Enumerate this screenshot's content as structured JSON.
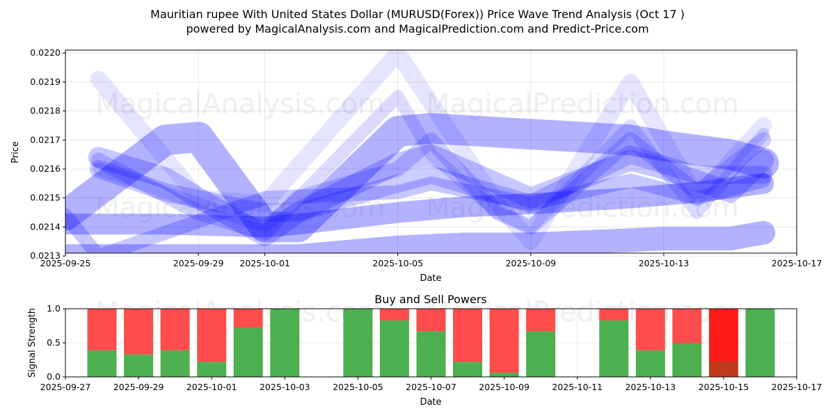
{
  "title_line1": "Mauritian rupee With United States Dollar (MURUSD(Forex)) Price Wave Trend Analysis (Oct 17 )",
  "title_line2": "powered by MagicalAnalysis.com and MagicalPrediction.com and Predict-Price.com",
  "watermarks": {
    "top": [
      "MagicalAnalysis.com",
      "MagicalPrediction.com"
    ],
    "bottom": [
      "MagicalAnalysis.com",
      "MagicalPrediction.com"
    ]
  },
  "colors": {
    "wave": "#0000ff",
    "buy": "#4caf50",
    "sell": "#ff4c4c",
    "sell_strong": "#ff1a1a",
    "buy_strong": "#c03c1c"
  },
  "chart_data": [
    {
      "type": "line",
      "name": "price-wave-chart",
      "xlabel": "Date",
      "ylabel": "Price",
      "xlim": [
        "2025-09-25",
        "2025-10-17"
      ],
      "ylim": [
        0.02131,
        0.02201
      ],
      "x_ticks": [
        "2025-09-25",
        "2025-09-29",
        "2025-10-01",
        "2025-10-05",
        "2025-10-09",
        "2025-10-13",
        "2025-10-17"
      ],
      "y_ticks": [
        "0.0213",
        "0.0214",
        "0.0215",
        "0.0216",
        "0.0217",
        "0.0218",
        "0.0219",
        "0.0220"
      ],
      "grid": true,
      "series": [
        {
          "name": "wave-1",
          "x": [
            "2025-09-25",
            "2025-09-26",
            "2025-09-28",
            "2025-09-29",
            "2025-10-01",
            "2025-10-02",
            "2025-10-03",
            "2025-10-05",
            "2025-10-07",
            "2025-10-09",
            "2025-10-11",
            "2025-10-13",
            "2025-10-15",
            "2025-10-16"
          ],
          "y": [
            0.0213,
            0.0213,
            0.0213,
            0.0213,
            0.0213,
            0.0213,
            0.02131,
            0.02133,
            0.02134,
            0.02134,
            0.02135,
            0.02136,
            0.02136,
            0.02138
          ]
        },
        {
          "name": "wave-2",
          "x": [
            "2025-09-25",
            "2025-09-28",
            "2025-10-01",
            "2025-10-02",
            "2025-10-05",
            "2025-10-07",
            "2025-10-09",
            "2025-10-12",
            "2025-10-14",
            "2025-10-16"
          ],
          "y": [
            0.02141,
            0.02141,
            0.0214,
            0.02141,
            0.02145,
            0.02147,
            0.02148,
            0.0215,
            0.02152,
            0.02155
          ]
        },
        {
          "name": "wave-3",
          "x": [
            "2025-09-25",
            "2025-09-28",
            "2025-09-29",
            "2025-10-01",
            "2025-10-02",
            "2025-10-05",
            "2025-10-06",
            "2025-10-09",
            "2025-10-12",
            "2025-10-13",
            "2025-10-15",
            "2025-10-16"
          ],
          "y": [
            0.02144,
            0.0217,
            0.02171,
            0.0214,
            0.0214,
            0.02173,
            0.02174,
            0.02172,
            0.0217,
            0.02168,
            0.02165,
            0.02162
          ]
        },
        {
          "name": "wave-4",
          "x": [
            "2025-09-26",
            "2025-09-28",
            "2025-09-29",
            "2025-10-01",
            "2025-10-02",
            "2025-10-05",
            "2025-10-06",
            "2025-10-09",
            "2025-10-12",
            "2025-10-13",
            "2025-10-15",
            "2025-10-16"
          ],
          "y": [
            0.02164,
            0.02157,
            0.0215,
            0.02137,
            0.02145,
            0.02162,
            0.02165,
            0.0215,
            0.02163,
            0.0216,
            0.02152,
            0.02163
          ]
        },
        {
          "name": "wave-5",
          "x": [
            "2025-09-26",
            "2025-09-28",
            "2025-10-01",
            "2025-10-02",
            "2025-10-05",
            "2025-10-06",
            "2025-10-09",
            "2025-10-12",
            "2025-10-14",
            "2025-10-16"
          ],
          "y": [
            0.0216,
            0.02152,
            0.02145,
            0.02145,
            0.02155,
            0.02158,
            0.02148,
            0.02165,
            0.02158,
            0.02158
          ]
        },
        {
          "name": "wave-6",
          "x": [
            "2025-09-26",
            "2025-09-29",
            "2025-10-01",
            "2025-10-02",
            "2025-10-05",
            "2025-10-06",
            "2025-10-08",
            "2025-10-09",
            "2025-10-12",
            "2025-10-14",
            "2025-10-16"
          ],
          "y": [
            0.02163,
            0.02145,
            0.02138,
            0.0215,
            0.0216,
            0.0217,
            0.02145,
            0.0214,
            0.0217,
            0.02152,
            0.0217
          ]
        },
        {
          "name": "wave-7",
          "x": [
            "2025-09-25",
            "2025-09-26",
            "2025-10-01",
            "2025-10-05",
            "2025-10-06",
            "2025-10-09",
            "2025-10-12",
            "2025-10-14",
            "2025-10-16"
          ],
          "y": [
            0.02144,
            0.0213,
            0.0215,
            0.02152,
            0.02155,
            0.02148,
            0.02156,
            0.0215,
            0.02156
          ]
        },
        {
          "name": "wave-8",
          "x": [
            "2025-09-26",
            "2025-09-29",
            "2025-10-01",
            "2025-10-05",
            "2025-10-08",
            "2025-10-09",
            "2025-10-12",
            "2025-10-14",
            "2025-10-16"
          ],
          "y": [
            0.02191,
            0.0215,
            0.02148,
            0.022,
            0.02148,
            0.02135,
            0.0219,
            0.0215,
            0.02175
          ]
        },
        {
          "name": "wave-9",
          "x": [
            "2025-09-26",
            "2025-09-29",
            "2025-10-01",
            "2025-10-02",
            "2025-10-05",
            "2025-10-06",
            "2025-10-08",
            "2025-10-09",
            "2025-10-12",
            "2025-10-14",
            "2025-10-16"
          ],
          "y": [
            0.0216,
            0.02148,
            0.0214,
            0.0215,
            0.02185,
            0.02165,
            0.02145,
            0.0214,
            0.02175,
            0.02145,
            0.02172
          ]
        }
      ]
    },
    {
      "type": "bar",
      "name": "buy-sell-powers-chart",
      "title": "Buy and Sell Powers",
      "xlabel": "Date",
      "ylabel": "Signal Strength",
      "xlim": [
        "2025-09-27",
        "2025-10-17"
      ],
      "ylim": [
        0,
        1
      ],
      "x_ticks": [
        "2025-09-27",
        "2025-09-29",
        "2025-10-01",
        "2025-10-03",
        "2025-10-05",
        "2025-10-07",
        "2025-10-09",
        "2025-10-11",
        "2025-10-13",
        "2025-10-15",
        "2025-10-17"
      ],
      "y_ticks": [
        "0.0",
        "0.5",
        "1.0"
      ],
      "grid": true,
      "categories": [
        "2025-09-28",
        "2025-09-29",
        "2025-09-30",
        "2025-10-01",
        "2025-10-02",
        "2025-10-03",
        "2025-10-05",
        "2025-10-06",
        "2025-10-07",
        "2025-10-08",
        "2025-10-09",
        "2025-10-10",
        "2025-10-12",
        "2025-10-13",
        "2025-10-14",
        "2025-10-15",
        "2025-10-16"
      ],
      "series": [
        {
          "name": "buy",
          "values": [
            0.39,
            0.33,
            0.39,
            0.22,
            0.72,
            1.0,
            1.0,
            0.83,
            0.67,
            0.22,
            0.06,
            0.67,
            0.83,
            0.39,
            0.5,
            0.23,
            1.0
          ]
        },
        {
          "name": "sell",
          "values": [
            0.61,
            0.67,
            0.61,
            0.78,
            0.28,
            0.0,
            0.0,
            0.17,
            0.33,
            0.78,
            0.94,
            0.33,
            0.17,
            0.61,
            0.5,
            0.77,
            0.0
          ]
        }
      ],
      "highlight_index": 15
    }
  ]
}
